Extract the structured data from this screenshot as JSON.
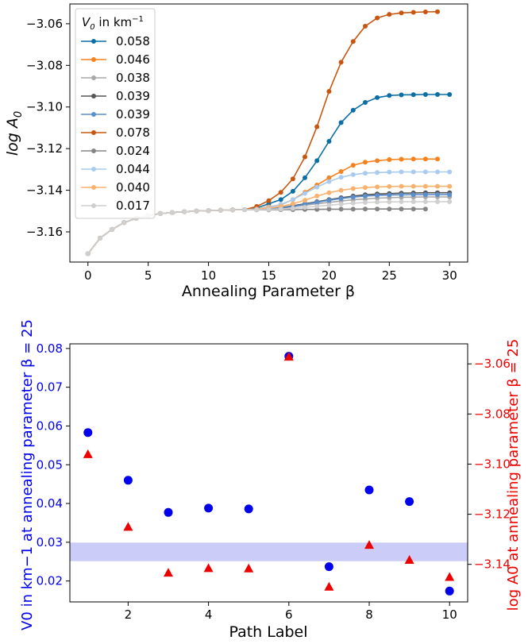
{
  "chart_data": [
    {
      "type": "line",
      "xlabel": "Annealing Parameter β",
      "ylabel": "log A",
      "ylabel_sub": "0",
      "xlim": [
        -1.5,
        31.5
      ],
      "ylim": [
        -3.1745,
        -3.0505
      ],
      "xticks": [
        "0",
        "5",
        "10",
        "15",
        "20",
        "25",
        "30"
      ],
      "yticks": [
        "−3.06",
        "−3.08",
        "−3.10",
        "−3.12",
        "−3.14",
        "−3.16"
      ],
      "legend": {
        "placement": "top-left",
        "title": "V0 in km−1",
        "title_main": "V",
        "title_sub": "0",
        "title_rest": " in km",
        "title_sup": "−1"
      },
      "shared_start": [
        [
          0,
          -3.1705
        ],
        [
          1,
          -3.163
        ],
        [
          2,
          -3.1588
        ],
        [
          3,
          -3.1555
        ],
        [
          4,
          -3.1535
        ],
        [
          5,
          -3.1522
        ],
        [
          6,
          -3.1512
        ],
        [
          7,
          -3.1507
        ],
        [
          8,
          -3.1503
        ],
        [
          9,
          -3.15
        ],
        [
          10,
          -3.1498
        ],
        [
          11,
          -3.1496
        ],
        [
          12,
          -3.1494
        ],
        [
          13,
          -3.1493
        ]
      ],
      "series": [
        {
          "name": "0.058",
          "color": "#0b6fa5",
          "tail": [
            [
              14,
              -3.1485
            ],
            [
              15,
              -3.1465
            ],
            [
              16,
              -3.1445
            ],
            [
              17,
              -3.1405
            ],
            [
              18,
              -3.134
            ],
            [
              19,
              -3.1258
            ],
            [
              20,
              -3.1165
            ],
            [
              21,
              -3.1075
            ],
            [
              22,
              -3.1015
            ],
            [
              23,
              -3.0978
            ],
            [
              24,
              -3.0955
            ],
            [
              25,
              -3.0945
            ],
            [
              26,
              -3.0942
            ],
            [
              27,
              -3.0941
            ],
            [
              28,
              -3.094
            ],
            [
              29,
              -3.094
            ],
            [
              30,
              -3.094
            ]
          ]
        },
        {
          "name": "0.046",
          "color": "#f5821f",
          "tail": [
            [
              14,
              -3.149
            ],
            [
              15,
              -3.148
            ],
            [
              16,
              -3.147
            ],
            [
              17,
              -3.1445
            ],
            [
              18,
              -3.141
            ],
            [
              19,
              -3.1375
            ],
            [
              20,
              -3.134
            ],
            [
              21,
              -3.131
            ],
            [
              22,
              -3.128
            ],
            [
              23,
              -3.1265
            ],
            [
              24,
              -3.1258
            ],
            [
              25,
              -3.1253
            ],
            [
              26,
              -3.1251
            ],
            [
              27,
              -3.125
            ],
            [
              28,
              -3.125
            ],
            [
              29,
              -3.125
            ]
          ]
        },
        {
          "name": "0.038",
          "color": "#a8a8a8",
          "tail": [
            [
              14,
              -3.1492
            ],
            [
              15,
              -3.149
            ],
            [
              16,
              -3.1485
            ],
            [
              17,
              -3.148
            ],
            [
              18,
              -3.1472
            ],
            [
              19,
              -3.1465
            ],
            [
              20,
              -3.1458
            ],
            [
              21,
              -3.1452
            ],
            [
              22,
              -3.1446
            ],
            [
              23,
              -3.1442
            ],
            [
              24,
              -3.1438
            ],
            [
              25,
              -3.1436
            ],
            [
              26,
              -3.1434
            ],
            [
              27,
              -3.1433
            ],
            [
              28,
              -3.1432
            ],
            [
              29,
              -3.1432
            ],
            [
              30,
              -3.1432
            ]
          ]
        },
        {
          "name": "0.039",
          "color": "#555555",
          "tail": [
            [
              14,
              -3.1492
            ],
            [
              15,
              -3.149
            ],
            [
              16,
              -3.1484
            ],
            [
              17,
              -3.1475
            ],
            [
              18,
              -3.1465
            ],
            [
              19,
              -3.1455
            ],
            [
              20,
              -3.1445
            ],
            [
              21,
              -3.1436
            ],
            [
              22,
              -3.1428
            ],
            [
              23,
              -3.1422
            ],
            [
              24,
              -3.1418
            ],
            [
              25,
              -3.1416
            ],
            [
              26,
              -3.1414
            ],
            [
              27,
              -3.1413
            ],
            [
              28,
              -3.1412
            ],
            [
              29,
              -3.1412
            ],
            [
              30,
              -3.1412
            ]
          ]
        },
        {
          "name": "0.039",
          "color": "#5b8fcc",
          "tail": [
            [
              14,
              -3.1492
            ],
            [
              15,
              -3.149
            ],
            [
              16,
              -3.1485
            ],
            [
              17,
              -3.1478
            ],
            [
              18,
              -3.1468
            ],
            [
              19,
              -3.1458
            ],
            [
              20,
              -3.1448
            ],
            [
              21,
              -3.144
            ],
            [
              22,
              -3.1433
            ],
            [
              23,
              -3.1428
            ],
            [
              24,
              -3.1425
            ],
            [
              25,
              -3.1423
            ],
            [
              26,
              -3.1422
            ],
            [
              27,
              -3.1421
            ],
            [
              28,
              -3.1421
            ],
            [
              29,
              -3.1421
            ],
            [
              30,
              -3.1421
            ]
          ]
        },
        {
          "name": "0.078",
          "color": "#c8560f",
          "tail": [
            [
              14,
              -3.1478
            ],
            [
              15,
              -3.145
            ],
            [
              16,
              -3.141
            ],
            [
              17,
              -3.1345
            ],
            [
              18,
              -3.124
            ],
            [
              19,
              -3.1095
            ],
            [
              20,
              -3.0925
            ],
            [
              21,
              -3.0785
            ],
            [
              22,
              -3.0685
            ],
            [
              23,
              -3.0612
            ],
            [
              24,
              -3.0572
            ],
            [
              25,
              -3.0555
            ],
            [
              26,
              -3.0548
            ],
            [
              27,
              -3.0545
            ],
            [
              28,
              -3.0543
            ],
            [
              29,
              -3.0542
            ]
          ]
        },
        {
          "name": "0.024",
          "color": "#858585",
          "tail": [
            [
              14,
              -3.1494
            ],
            [
              15,
              -3.1494
            ],
            [
              16,
              -3.1493
            ],
            [
              17,
              -3.1493
            ],
            [
              18,
              -3.1492
            ],
            [
              19,
              -3.1492
            ],
            [
              20,
              -3.1491
            ],
            [
              21,
              -3.1491
            ],
            [
              22,
              -3.1491
            ],
            [
              23,
              -3.149
            ],
            [
              24,
              -3.149
            ],
            [
              25,
              -3.149
            ],
            [
              26,
              -3.149
            ],
            [
              27,
              -3.149
            ],
            [
              28,
              -3.149
            ]
          ]
        },
        {
          "name": "0.044",
          "color": "#a9cbee",
          "tail": [
            [
              14,
              -3.149
            ],
            [
              15,
              -3.1482
            ],
            [
              16,
              -3.1468
            ],
            [
              17,
              -3.1445
            ],
            [
              18,
              -3.1415
            ],
            [
              19,
              -3.1385
            ],
            [
              20,
              -3.1358
            ],
            [
              21,
              -3.1338
            ],
            [
              22,
              -3.1325
            ],
            [
              23,
              -3.1318
            ],
            [
              24,
              -3.1315
            ],
            [
              25,
              -3.1313
            ],
            [
              26,
              -3.1312
            ],
            [
              27,
              -3.1312
            ],
            [
              28,
              -3.1312
            ],
            [
              29,
              -3.1312
            ],
            [
              30,
              -3.1312
            ]
          ]
        },
        {
          "name": "0.040",
          "color": "#f8b26e",
          "tail": [
            [
              14,
              -3.1491
            ],
            [
              15,
              -3.1486
            ],
            [
              16,
              -3.1478
            ],
            [
              17,
              -3.1465
            ],
            [
              18,
              -3.1448
            ],
            [
              19,
              -3.1428
            ],
            [
              20,
              -3.1412
            ],
            [
              21,
              -3.14
            ],
            [
              22,
              -3.1392
            ],
            [
              23,
              -3.1387
            ],
            [
              24,
              -3.1384
            ],
            [
              25,
              -3.1382
            ],
            [
              26,
              -3.1381
            ],
            [
              27,
              -3.1381
            ],
            [
              28,
              -3.1381
            ],
            [
              29,
              -3.1381
            ],
            [
              30,
              -3.1381
            ]
          ]
        },
        {
          "name": "0.017",
          "color": "#cfcfcf",
          "tail": [
            [
              14,
              -3.1493
            ],
            [
              15,
              -3.1492
            ],
            [
              16,
              -3.149
            ],
            [
              17,
              -3.1487
            ],
            [
              18,
              -3.1482
            ],
            [
              19,
              -3.1477
            ],
            [
              20,
              -3.1472
            ],
            [
              21,
              -3.1467
            ],
            [
              22,
              -3.1462
            ],
            [
              23,
              -3.1459
            ],
            [
              24,
              -3.1457
            ],
            [
              25,
              -3.1456
            ],
            [
              26,
              -3.1455
            ],
            [
              27,
              -3.1455
            ],
            [
              28,
              -3.1455
            ],
            [
              29,
              -3.1455
            ],
            [
              30,
              -3.1455
            ]
          ]
        }
      ]
    },
    {
      "type": "scatter",
      "xlabel": "Path Label",
      "ylabel_left": "V0 in km−1 at annealing parameter β = 25",
      "ylabel_right": "log A0 at annealing parameter β = 25",
      "xlim": [
        0.55,
        10.45
      ],
      "ylim_left": [
        0.0146,
        0.0812
      ],
      "ylim_right": [
        -3.155,
        -3.052
      ],
      "xticks": [
        "2",
        "4",
        "6",
        "8",
        "10"
      ],
      "yticks_left": [
        "0.08",
        "0.07",
        "0.06",
        "0.05",
        "0.04",
        "0.03",
        "0.02"
      ],
      "yticks_right": [
        "−3.06",
        "−3.08",
        "−3.10",
        "−3.12",
        "−3.14"
      ],
      "band_left": [
        0.0251,
        0.0299
      ],
      "band_color": "#c6c6f7",
      "left_color": "#0000ee",
      "right_color": "#ee0000",
      "x": [
        1,
        2,
        3,
        4,
        5,
        6,
        7,
        8,
        9,
        10
      ],
      "series": [
        {
          "axis": "left",
          "marker": "circle",
          "values": [
            0.0583,
            0.046,
            0.0377,
            0.0388,
            0.0386,
            0.078,
            0.0237,
            0.0435,
            0.0405,
            0.0174
          ]
        },
        {
          "axis": "right",
          "marker": "triangle",
          "values": [
            -3.0962,
            -3.1252,
            -3.1435,
            -3.1417,
            -3.1418,
            -3.0573,
            -3.1491,
            -3.1324,
            -3.1384,
            -3.1452
          ]
        }
      ]
    }
  ]
}
